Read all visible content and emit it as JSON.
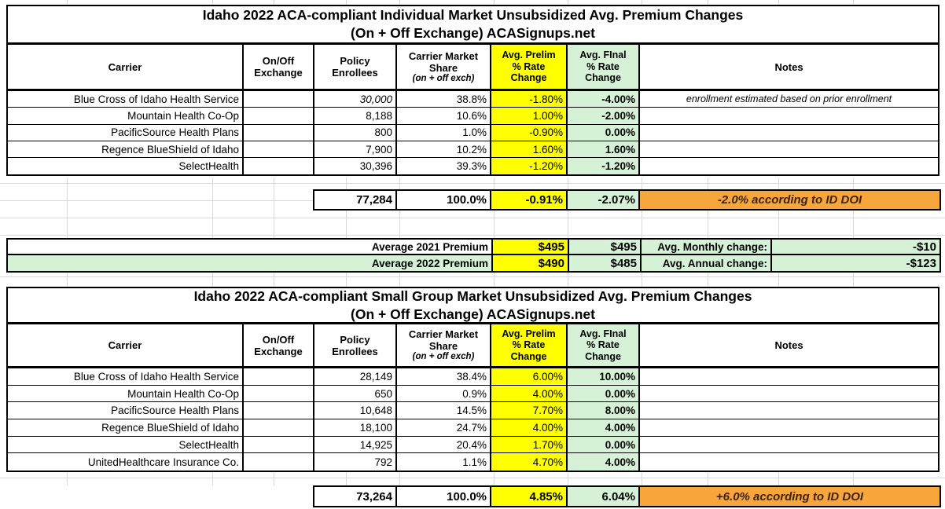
{
  "colors": {
    "highlight_yellow": "#ffff00",
    "highlight_green": "#d6f2d6",
    "highlight_orange": "#f7a63b",
    "orange_note_text": "#3d2409",
    "border": "#000000",
    "gridline": "#d9d9d9"
  },
  "headers": {
    "carrier": "Carrier",
    "exchange": "On/Off\nExchange",
    "enrollees": "Policy\nEnrollees",
    "share": "Carrier Market\nShare",
    "share_sub": "(on + off exch)",
    "prelim": "Avg. Prelim\n% Rate\nChange",
    "final": "Avg. FInal\n% Rate\nChange",
    "notes": "Notes"
  },
  "individual": {
    "title_line1": "Idaho 2022 ACA-compliant Individual Market Unsubsidized Avg. Premium Changes",
    "title_line2": "(On + Off Exchange) ACASignups.net",
    "rows": [
      {
        "carrier": "Blue Cross of Idaho Health Service",
        "exchange": "",
        "enrollees": "30,000",
        "share": "38.8%",
        "prelim": "-1.80%",
        "final": "-4.00%",
        "note": "enrollment estimated based on prior enrollment"
      },
      {
        "carrier": "Mountain Health Co-Op",
        "exchange": "",
        "enrollees": "8,188",
        "share": "10.6%",
        "prelim": "1.00%",
        "final": "-2.00%",
        "note": ""
      },
      {
        "carrier": "PacificSource Health Plans",
        "exchange": "",
        "enrollees": "800",
        "share": "1.0%",
        "prelim": "-0.90%",
        "final": "0.00%",
        "note": ""
      },
      {
        "carrier": "Regence BlueShield of Idaho",
        "exchange": "",
        "enrollees": "7,900",
        "share": "10.2%",
        "prelim": "1.60%",
        "final": "1.60%",
        "note": ""
      },
      {
        "carrier": "SelectHealth",
        "exchange": "",
        "enrollees": "30,396",
        "share": "39.3%",
        "prelim": "-1.20%",
        "final": "-1.20%",
        "note": ""
      }
    ],
    "total": {
      "enrollees": "77,284",
      "share": "100.0%",
      "prelim": "-0.91%",
      "final": "-2.07%",
      "note": "-2.0% according to ID DOI"
    }
  },
  "premium_summary": {
    "rows": [
      {
        "label": "Average 2021 Premium",
        "prelim": "$495",
        "final": "$495",
        "change_label": "Avg. Monthly change:",
        "change_value": "-$10"
      },
      {
        "label": "Average 2022 Premium",
        "prelim": "$490",
        "final": "$485",
        "change_label": "Avg. Annual change:",
        "change_value": "-$123"
      }
    ]
  },
  "small_group": {
    "title_line1": "Idaho 2022 ACA-compliant Small Group Market Unsubsidized Avg. Premium Changes",
    "title_line2": "(On + Off Exchange) ACASignups.net",
    "rows": [
      {
        "carrier": "Blue Cross of Idaho Health Service",
        "exchange": "",
        "enrollees": "28,149",
        "share": "38.4%",
        "prelim": "6.00%",
        "final": "10.00%",
        "note": ""
      },
      {
        "carrier": "Mountain Health Co-Op",
        "exchange": "",
        "enrollees": "650",
        "share": "0.9%",
        "prelim": "4.00%",
        "final": "0.00%",
        "note": ""
      },
      {
        "carrier": "PacificSource Health Plans",
        "exchange": "",
        "enrollees": "10,648",
        "share": "14.5%",
        "prelim": "7.70%",
        "final": "8.00%",
        "note": ""
      },
      {
        "carrier": "Regence BlueShield of Idaho",
        "exchange": "",
        "enrollees": "18,100",
        "share": "24.7%",
        "prelim": "4.00%",
        "final": "4.00%",
        "note": ""
      },
      {
        "carrier": "SelectHealth",
        "exchange": "",
        "enrollees": "14,925",
        "share": "20.4%",
        "prelim": "1.70%",
        "final": "0.00%",
        "note": ""
      },
      {
        "carrier": "UnitedHealthcare Insurance Co.",
        "exchange": "",
        "enrollees": "792",
        "share": "1.1%",
        "prelim": "4.70%",
        "final": "4.00%",
        "note": ""
      }
    ],
    "total": {
      "enrollees": "73,264",
      "share": "100.0%",
      "prelim": "4.85%",
      "final": "6.04%",
      "note": "+6.0% according to ID DOI"
    }
  }
}
